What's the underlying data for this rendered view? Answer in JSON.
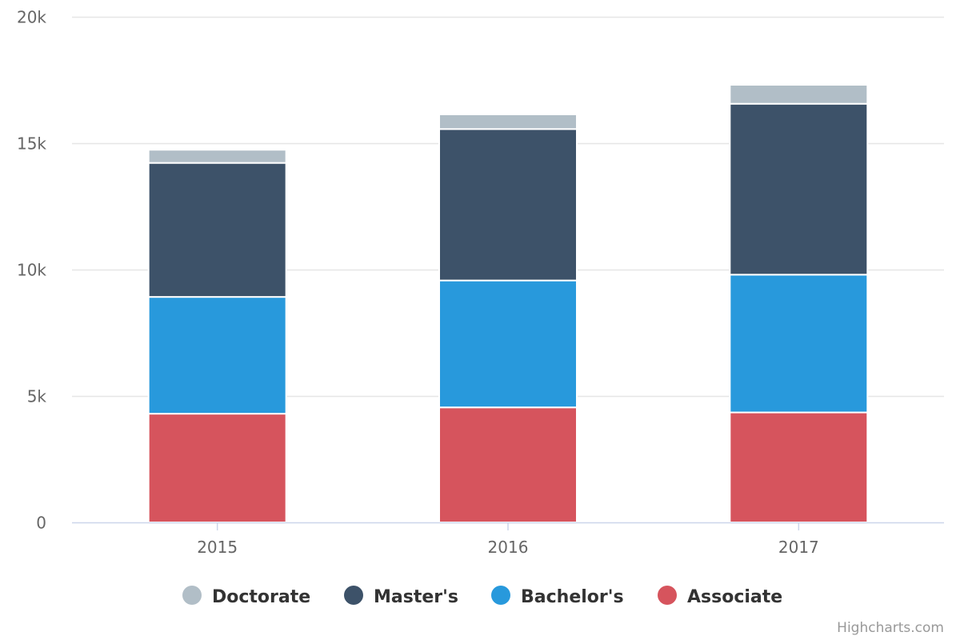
{
  "chart_data": {
    "type": "bar",
    "stacked": true,
    "categories": [
      "2015",
      "2016",
      "2017"
    ],
    "series": [
      {
        "name": "Associate",
        "color": "#d6545d",
        "values": [
          4300,
          4550,
          4350
        ]
      },
      {
        "name": "Bachelor's",
        "color": "#2899dc",
        "values": [
          4620,
          5020,
          5450
        ]
      },
      {
        "name": "Master's",
        "color": "#3d5269",
        "values": [
          5300,
          5990,
          6760
        ]
      },
      {
        "name": "Doctorate",
        "color": "#b1bec7",
        "values": [
          520,
          580,
          750
        ]
      }
    ],
    "legend_order": [
      "Doctorate",
      "Master's",
      "Bachelor's",
      "Associate"
    ],
    "ylim": [
      0,
      20000
    ],
    "yticks": [
      0,
      5000,
      10000,
      15000,
      20000
    ],
    "ytick_labels": [
      "0",
      "5k",
      "10k",
      "15k",
      "20k"
    ],
    "grid": true,
    "legend_position": "bottom-center",
    "credits": "Highcharts.com"
  }
}
